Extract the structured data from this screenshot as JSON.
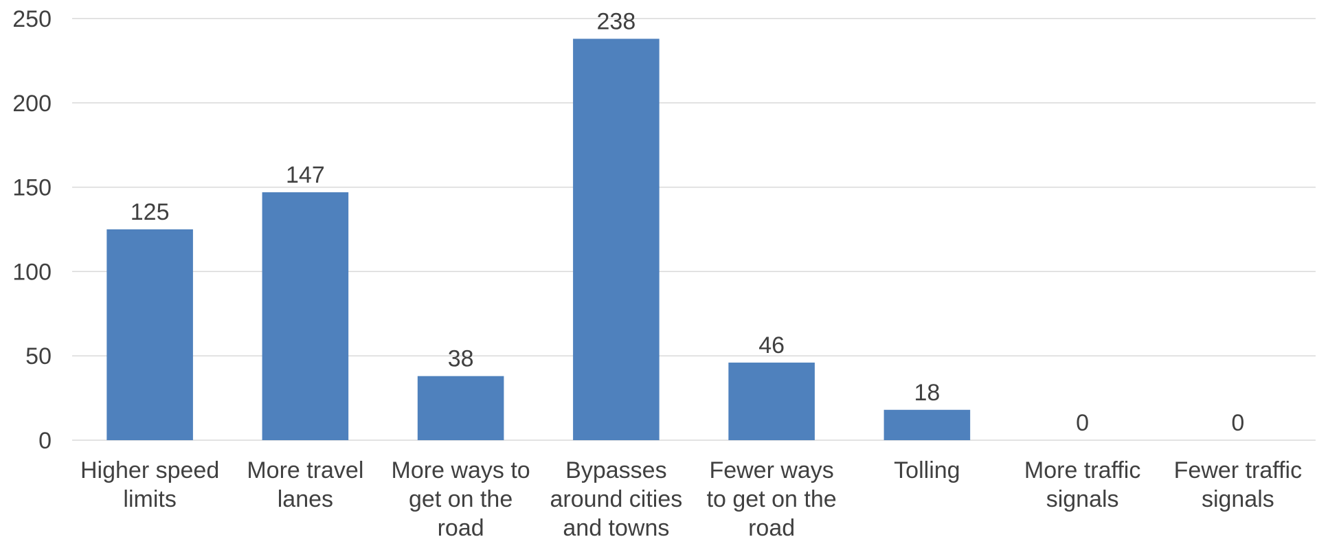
{
  "chart_data": {
    "type": "bar",
    "categories": [
      [
        "Higher speed",
        "limits"
      ],
      [
        "More travel",
        "lanes"
      ],
      [
        "More ways to",
        "get on the",
        "road"
      ],
      [
        "Bypasses",
        "around cities",
        "and towns"
      ],
      [
        "Fewer ways",
        "to get on the",
        "road"
      ],
      [
        "Tolling"
      ],
      [
        "More traffic",
        "signals"
      ],
      [
        "Fewer traffic",
        "signals"
      ]
    ],
    "values": [
      125,
      147,
      38,
      238,
      46,
      18,
      0,
      0
    ],
    "data_labels": [
      "125",
      "147",
      "38",
      "238",
      "46",
      "18",
      "0",
      "0"
    ],
    "title": "",
    "xlabel": "",
    "ylabel": "",
    "ylim": [
      0,
      250
    ],
    "yticks": [
      0,
      50,
      100,
      150,
      200,
      250
    ],
    "ytick_labels": [
      "0",
      "50",
      "100",
      "150",
      "200",
      "250"
    ],
    "grid": true,
    "legend": "none",
    "colors": {
      "bar": "#4f81bd",
      "grid": "#d9d9d9",
      "text": "#404040"
    }
  }
}
